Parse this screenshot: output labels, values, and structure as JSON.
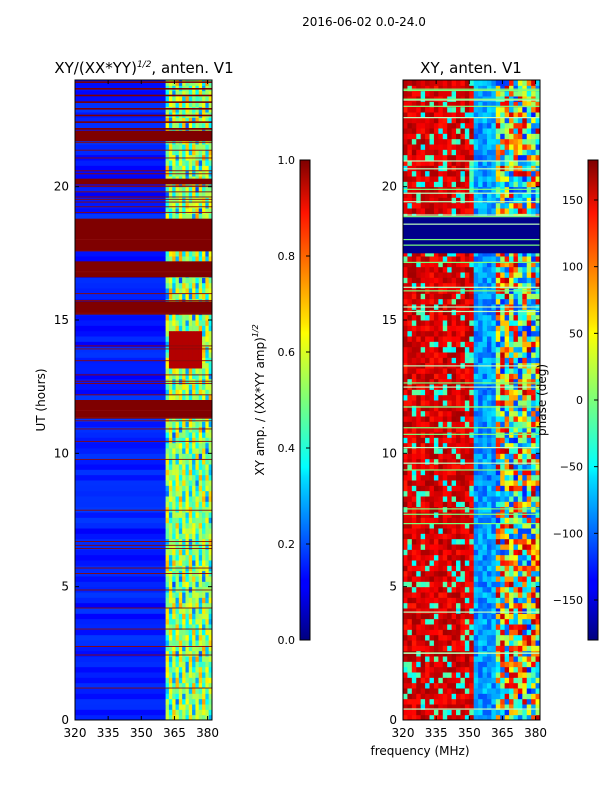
{
  "suptitle": "2016-06-02 0.0-24.0",
  "chart_data": [
    {
      "type": "heatmap",
      "title_main": "XY/(XX*YY)",
      "title_exp": "1/2",
      "title_tail": ", anten. V1",
      "ylabel": "UT (hours)",
      "xlim": [
        320,
        382
      ],
      "ylim": [
        0,
        24
      ],
      "xticks": [
        320,
        335,
        350,
        365,
        380
      ],
      "yticks": [
        0,
        5,
        10,
        15,
        20
      ],
      "bands": [
        {
          "from": 0.0,
          "to": 14.0,
          "value": "mostly low (0.1-0.2), structured 0.3-0.6 in 361-380 MHz"
        },
        {
          "from": 11.3,
          "to": 12.0,
          "value": "masked (1.0)"
        },
        {
          "from": 15.2,
          "to": 15.7,
          "value": "masked (1.0)"
        },
        {
          "from": 16.6,
          "to": 17.2,
          "value": "masked (1.0)"
        },
        {
          "from": 17.6,
          "to": 18.8,
          "value": "masked (1.0)"
        },
        {
          "from": 20.1,
          "to": 20.3,
          "value": "masked (1.0)"
        },
        {
          "from": 21.7,
          "to": 22.1,
          "value": "masked (1.0)"
        }
      ],
      "colorbar": {
        "label_main": "XY amp. / (XX*YY amp)",
        "label_exp": "1/2",
        "range": [
          0.0,
          1.0
        ],
        "ticks": [
          "0.0",
          "0.2",
          "0.4",
          "0.6",
          "0.8",
          "1.0"
        ]
      }
    },
    {
      "type": "heatmap",
      "title": "XY, anten. V1",
      "xlim": [
        320,
        382
      ],
      "ylim": [
        0,
        24
      ],
      "xticks": [
        320,
        335,
        350,
        365,
        380
      ],
      "yticks": [
        0,
        5,
        10,
        15,
        20
      ],
      "bands": [
        {
          "from": 17.5,
          "to": 18.9,
          "value": "masked (-180)"
        }
      ],
      "colorbar": {
        "label": "phase (deg)",
        "range": [
          -180,
          180
        ],
        "ticks": [
          "−150",
          "−100",
          "−50",
          "0",
          "50",
          "100",
          "150"
        ]
      }
    }
  ],
  "shared_xlabel": "frequency (MHz)"
}
